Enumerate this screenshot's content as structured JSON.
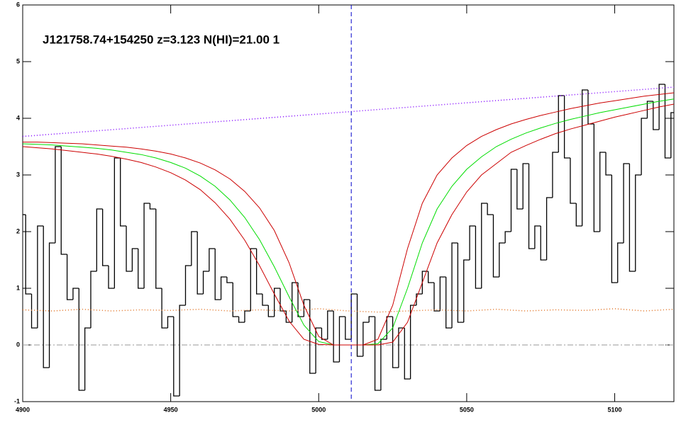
{
  "chart_data": {
    "type": "line",
    "title": "J121758.74+154250 z=3.123 N(HI)=21.00 1",
    "xlim": [
      4900,
      5120
    ],
    "ylim": [
      -1,
      6
    ],
    "xticks": [
      4900,
      4950,
      5000,
      5050,
      5100
    ],
    "yticks": [
      -1,
      0,
      1,
      2,
      3,
      4,
      5,
      6
    ],
    "vline": {
      "value": 5011,
      "color": "#0000cc"
    },
    "hline": {
      "value": 0,
      "color": "#999999"
    },
    "series": [
      {
        "style": "step",
        "color": "#000000",
        "x": [
          4900,
          4902,
          4904,
          4906,
          4908,
          4910,
          4912,
          4914,
          4916,
          4918,
          4920,
          4922,
          4924,
          4926,
          4928,
          4930,
          4932,
          4934,
          4936,
          4938,
          4940,
          4942,
          4944,
          4946,
          4948,
          4950,
          4952,
          4954,
          4956,
          4958,
          4960,
          4962,
          4964,
          4966,
          4968,
          4970,
          4972,
          4974,
          4976,
          4978,
          4980,
          4982,
          4984,
          4986,
          4988,
          4990,
          4992,
          4994,
          4996,
          4998,
          5000,
          5002,
          5004,
          5006,
          5008,
          5010,
          5012,
          5014,
          5016,
          5018,
          5020,
          5022,
          5024,
          5026,
          5028,
          5030,
          5032,
          5034,
          5036,
          5038,
          5040,
          5042,
          5044,
          5046,
          5048,
          5050,
          5052,
          5054,
          5056,
          5058,
          5060,
          5062,
          5064,
          5066,
          5068,
          5070,
          5072,
          5074,
          5076,
          5078,
          5080,
          5082,
          5084,
          5086,
          5088,
          5090,
          5092,
          5094,
          5096,
          5098,
          5100,
          5102,
          5104,
          5106,
          5108,
          5110,
          5112,
          5114,
          5116,
          5118,
          5120
        ],
        "values": [
          2.3,
          0.9,
          0.3,
          2.1,
          -0.4,
          1.8,
          3.5,
          1.6,
          0.8,
          1.0,
          -0.8,
          0.3,
          1.3,
          2.4,
          1.4,
          1.0,
          3.3,
          2.1,
          1.3,
          1.7,
          1.0,
          2.5,
          2.4,
          1.0,
          0.3,
          0.5,
          -0.9,
          0.7,
          1.4,
          2.0,
          0.9,
          1.3,
          1.7,
          0.8,
          1.2,
          1.1,
          0.5,
          0.4,
          0.6,
          1.7,
          0.9,
          0.7,
          0.5,
          1.0,
          0.6,
          0.4,
          1.1,
          0.5,
          0.8,
          -0.5,
          0.3,
          0.1,
          0.6,
          -0.3,
          0.5,
          0.1,
          0.9,
          -0.2,
          0.4,
          0.5,
          -0.8,
          0.1,
          0.5,
          -0.4,
          0.3,
          -0.6,
          0.7,
          0.9,
          1.3,
          1.1,
          0.6,
          1.2,
          0.3,
          1.8,
          0.4,
          1.5,
          2.1,
          1.0,
          2.5,
          2.3,
          1.2,
          1.8,
          2.0,
          3.1,
          2.4,
          3.2,
          1.7,
          2.1,
          1.5,
          2.6,
          3.4,
          4.4,
          3.3,
          2.5,
          2.1,
          4.5,
          3.9,
          2.0,
          3.4,
          3.0,
          1.1,
          1.8,
          3.2,
          1.3,
          3.0,
          4.0,
          4.3,
          3.8,
          4.6,
          3.3,
          4.1
        ]
      },
      {
        "style": "dotted",
        "color": "#e07020",
        "x": [
          4900,
          4910,
          4920,
          4930,
          4940,
          4950,
          4960,
          4970,
          4980,
          4990,
          5000,
          5010,
          5020,
          5030,
          5040,
          5050,
          5060,
          5070,
          5080,
          5090,
          5100,
          5110,
          5120
        ],
        "values": [
          0.62,
          0.6,
          0.63,
          0.6,
          0.62,
          0.61,
          0.63,
          0.6,
          0.62,
          0.6,
          0.64,
          0.6,
          0.58,
          0.6,
          0.62,
          0.6,
          0.63,
          0.6,
          0.62,
          0.61,
          0.64,
          0.6,
          0.63
        ]
      },
      {
        "style": "dotted",
        "color": "#8000ff",
        "x": [
          4900,
          5120
        ],
        "values": [
          3.68,
          4.55
        ]
      },
      {
        "style": "solid",
        "color": "#00dd00",
        "x": [
          4900,
          4905,
          4910,
          4915,
          4920,
          4925,
          4930,
          4935,
          4940,
          4945,
          4950,
          4955,
          4960,
          4965,
          4970,
          4975,
          4980,
          4985,
          4990,
          4995,
          5000,
          5005,
          5010,
          5015,
          5020,
          5025,
          5030,
          5035,
          5040,
          5045,
          5050,
          5055,
          5060,
          5065,
          5070,
          5075,
          5080,
          5085,
          5090,
          5095,
          5100,
          5105,
          5110,
          5115,
          5120
        ],
        "values": [
          3.55,
          3.54,
          3.53,
          3.51,
          3.49,
          3.47,
          3.44,
          3.4,
          3.36,
          3.3,
          3.22,
          3.12,
          2.98,
          2.8,
          2.56,
          2.25,
          1.86,
          1.38,
          0.85,
          0.35,
          0.06,
          0,
          0,
          0,
          0.02,
          0.3,
          1.0,
          1.8,
          2.4,
          2.8,
          3.1,
          3.32,
          3.5,
          3.63,
          3.74,
          3.83,
          3.91,
          3.98,
          4.04,
          4.1,
          4.15,
          4.2,
          4.25,
          4.3,
          4.34
        ]
      },
      {
        "style": "solid",
        "color": "#cc0000",
        "x": [
          4900,
          4905,
          4910,
          4915,
          4920,
          4925,
          4930,
          4935,
          4940,
          4945,
          4950,
          4955,
          4960,
          4965,
          4970,
          4975,
          4980,
          4985,
          4990,
          4995,
          5000,
          5005,
          5010,
          5015,
          5020,
          5025,
          5030,
          5035,
          5040,
          5045,
          5050,
          5055,
          5060,
          5065,
          5070,
          5075,
          5080,
          5085,
          5090,
          5095,
          5100,
          5105,
          5110,
          5115,
          5120
        ],
        "values": [
          3.58,
          3.58,
          3.57,
          3.56,
          3.55,
          3.53,
          3.51,
          3.49,
          3.46,
          3.42,
          3.37,
          3.3,
          3.21,
          3.09,
          2.93,
          2.71,
          2.42,
          2.02,
          1.45,
          0.7,
          0.15,
          0,
          0,
          0,
          0.1,
          0.7,
          1.7,
          2.5,
          3.0,
          3.3,
          3.52,
          3.68,
          3.8,
          3.9,
          3.98,
          4.05,
          4.11,
          4.17,
          4.22,
          4.27,
          4.31,
          4.35,
          4.39,
          4.42,
          4.45
        ]
      },
      {
        "style": "solid",
        "color": "#cc0000",
        "x": [
          4900,
          4905,
          4910,
          4915,
          4920,
          4925,
          4930,
          4935,
          4940,
          4945,
          4950,
          4955,
          4960,
          4965,
          4970,
          4975,
          4980,
          4985,
          4990,
          4995,
          5000,
          5005,
          5010,
          5015,
          5020,
          5025,
          5030,
          5035,
          5040,
          5045,
          5050,
          5055,
          5060,
          5065,
          5070,
          5075,
          5080,
          5085,
          5090,
          5095,
          5100,
          5105,
          5110,
          5115,
          5120
        ],
        "values": [
          3.5,
          3.48,
          3.46,
          3.43,
          3.4,
          3.37,
          3.33,
          3.28,
          3.22,
          3.14,
          3.04,
          2.91,
          2.74,
          2.51,
          2.22,
          1.85,
          1.4,
          0.9,
          0.42,
          0.1,
          0.01,
          0,
          0,
          0,
          0,
          0.05,
          0.4,
          1.1,
          1.8,
          2.3,
          2.7,
          3.0,
          3.2,
          3.4,
          3.52,
          3.63,
          3.73,
          3.81,
          3.88,
          3.95,
          4.02,
          4.08,
          4.14,
          4.2,
          4.25
        ]
      }
    ]
  }
}
